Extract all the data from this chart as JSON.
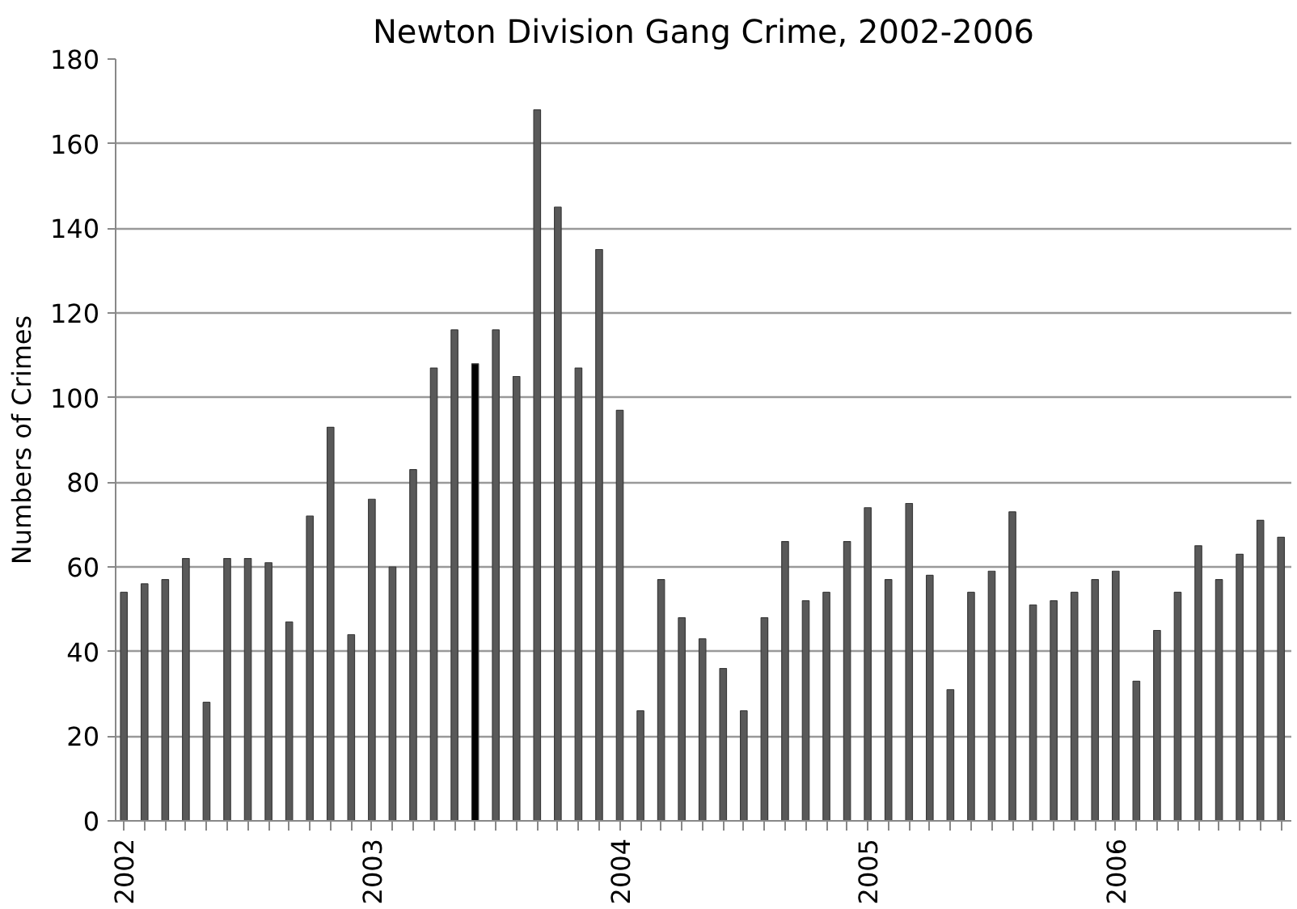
{
  "chart_data": {
    "type": "bar",
    "title": "Newton Division Gang Crime, 2002-2006",
    "ylabel": "Numbers of Crimes",
    "categories": [
      "2002",
      null,
      null,
      null,
      null,
      null,
      null,
      null,
      null,
      null,
      null,
      null,
      "2003",
      null,
      null,
      null,
      null,
      null,
      null,
      null,
      null,
      null,
      null,
      null,
      "2004",
      null,
      null,
      null,
      null,
      null,
      null,
      null,
      null,
      null,
      null,
      null,
      "2005",
      null,
      null,
      null,
      null,
      null,
      null,
      null,
      null,
      null,
      null,
      null,
      "2006",
      null,
      null,
      null,
      null,
      null,
      null,
      null,
      null
    ],
    "values": [
      54,
      56,
      57,
      62,
      28,
      62,
      62,
      61,
      47,
      72,
      93,
      44,
      76,
      60,
      83,
      107,
      116,
      108,
      116,
      105,
      168,
      145,
      107,
      135,
      97,
      26,
      57,
      48,
      43,
      36,
      26,
      48,
      66,
      52,
      54,
      66,
      74,
      57,
      75,
      58,
      31,
      54,
      59,
      73,
      51,
      52,
      54,
      57,
      59,
      33,
      45,
      54,
      65,
      57,
      63,
      71,
      67
    ],
    "colors": [
      "#595959",
      "#595959",
      "#595959",
      "#595959",
      "#595959",
      "#595959",
      "#595959",
      "#595959",
      "#595959",
      "#595959",
      "#595959",
      "#595959",
      "#595959",
      "#595959",
      "#595959",
      "#595959",
      "#595959",
      "#000000",
      "#595959",
      "#595959",
      "#595959",
      "#595959",
      "#595959",
      "#595959",
      "#595959",
      "#595959",
      "#595959",
      "#595959",
      "#595959",
      "#595959",
      "#595959",
      "#595959",
      "#595959",
      "#595959",
      "#595959",
      "#595959",
      "#595959",
      "#595959",
      "#595959",
      "#595959",
      "#595959",
      "#595959",
      "#595959",
      "#595959",
      "#595959",
      "#595959",
      "#595959",
      "#595959",
      "#595959",
      "#595959",
      "#595959",
      "#595959",
      "#595959",
      "#595959",
      "#595959",
      "#595959",
      "#595959"
    ],
    "ylim": [
      0,
      180
    ],
    "yticks": [
      0,
      20,
      40,
      60,
      80,
      100,
      120,
      140,
      160,
      180
    ],
    "grid": "y"
  }
}
